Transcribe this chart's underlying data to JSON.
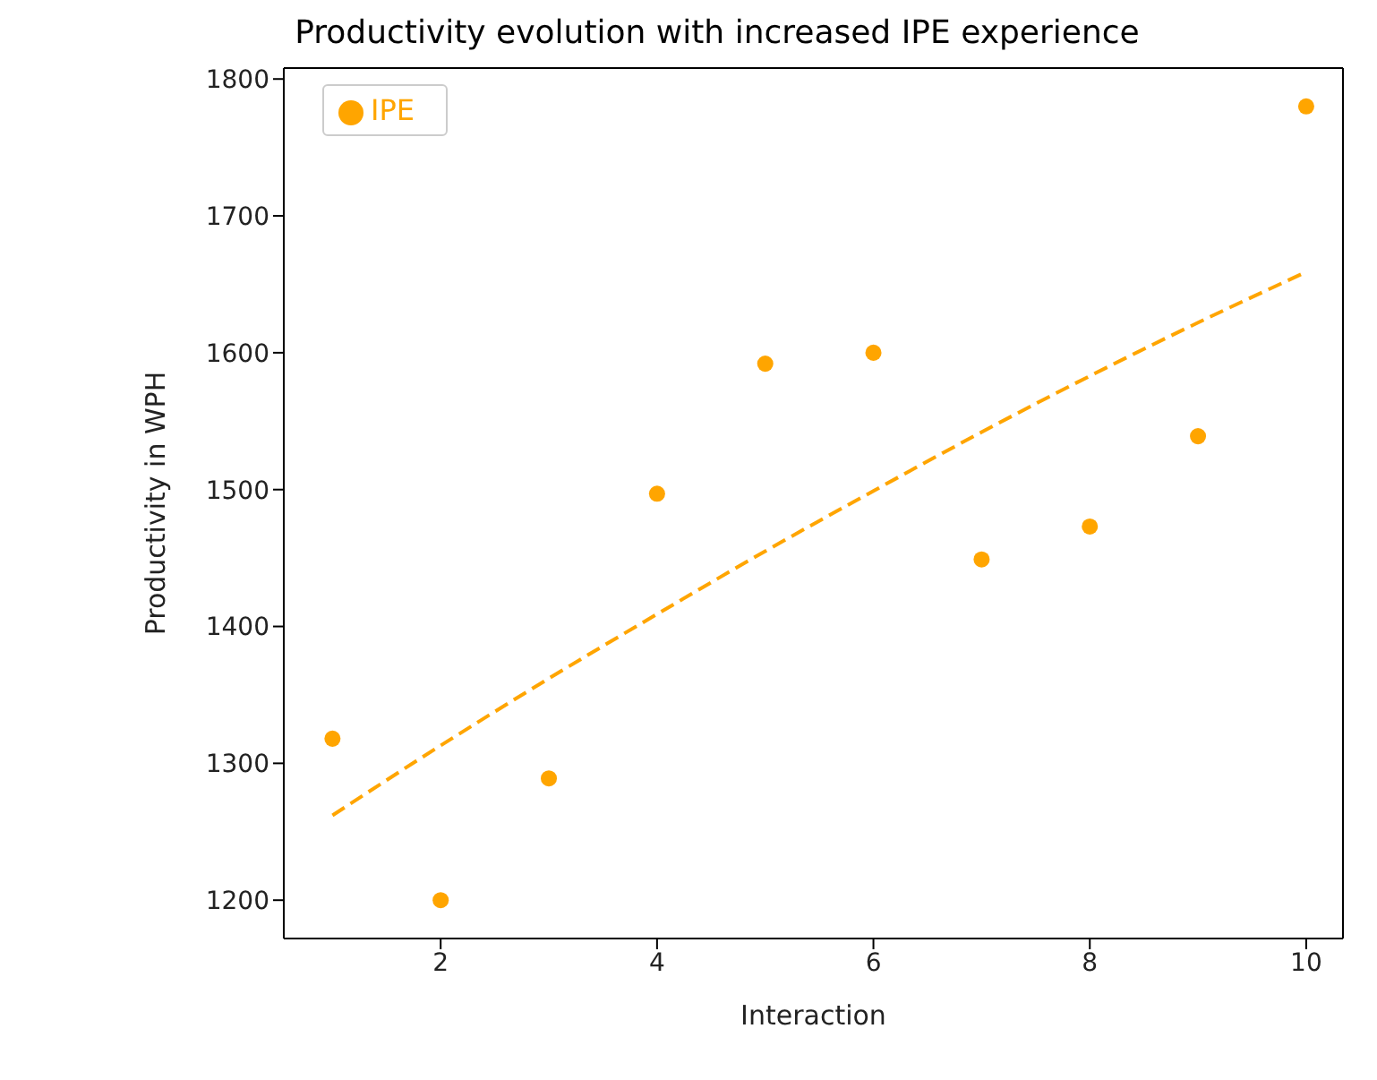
{
  "chart_data": {
    "type": "scatter",
    "title": "Productivity evolution with increased IPE experience",
    "xlabel": "Interaction",
    "ylabel": "Productivity in WPH",
    "x": [
      1,
      2,
      3,
      4,
      5,
      6,
      7,
      8,
      9,
      10
    ],
    "series": [
      {
        "name": "IPE",
        "color": "#ffa500",
        "marker": "circle",
        "values": [
          1318,
          1200,
          1289,
          1497,
          1592,
          1600,
          1449,
          1473,
          1539,
          1780
        ]
      },
      {
        "type": "line",
        "color": "#ffa500",
        "line_style": "dashed",
        "marker": "none",
        "x": [
          1,
          2,
          3,
          4,
          5,
          6,
          7,
          8,
          9,
          10
        ],
        "values": [
          1262,
          1313,
          1362,
          1409,
          1455,
          1499,
          1542,
          1583,
          1622,
          1659
        ]
      }
    ],
    "xlim": [
      0.55,
      10.34
    ],
    "xticks": [
      2,
      4,
      6,
      8,
      10
    ],
    "ylim": [
      1172,
      1808
    ],
    "yticks": [
      1200,
      1300,
      1400,
      1500,
      1600,
      1700,
      1800
    ],
    "grid": false,
    "legend": "top left"
  }
}
